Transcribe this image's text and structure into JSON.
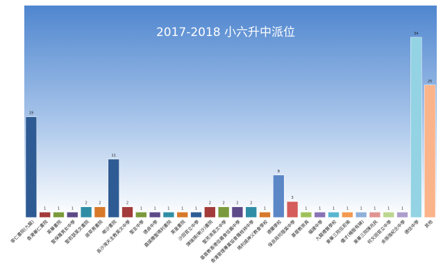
{
  "chart_data": {
    "type": "bar",
    "title": "2017-2018 小六升中派位",
    "categories": [
      "寧仁書院(九龍)",
      "香港華仁書院",
      "英華書院",
      "聖保羅男女中學",
      "聖若瑟英文書院",
      "拔萃男書院",
      "喇沙書院",
      "長沙灣天主教英文中學",
      "聖言中學",
      "德貞中學",
      "嘉諾撒聖瑪利書院",
      "英皇書院",
      "沙田官立中學",
      "陳瑞祺(喇沙)書院",
      "聖芳濟英文中學",
      "基督教香港信義會信義中學",
      "香港管理專業協會羅桂祥中學",
      "瑪利諾神父教會學校",
      "德蘭學校",
      "保良局何蔭棠中學",
      "基督教崇真",
      "福建中學",
      "九龍禮賢學校",
      "東華三院伍若瑜",
      "優才(楊殷有娣)",
      "東華三院陳兆民",
      "何文田官立中學",
      "余振強紀念中學",
      "德信中學",
      "其他"
    ],
    "values": [
      19,
      1,
      1,
      1,
      2,
      2,
      11,
      2,
      1,
      1,
      1,
      1,
      1,
      2,
      2,
      2,
      2,
      1,
      8,
      3,
      1,
      1,
      1,
      1,
      1,
      1,
      1,
      1,
      34,
      25
    ],
    "colors": [
      "#2e5b94",
      "#a33b3a",
      "#7a9a3b",
      "#5e4a87",
      "#2f8ea6",
      "#d7782a",
      "#2e5b94",
      "#a33b3a",
      "#7a9a3b",
      "#5e4a87",
      "#2f8ea6",
      "#d7782a",
      "#2e5b94",
      "#a33b3a",
      "#7a9a3b",
      "#5e4a87",
      "#2f8ea6",
      "#d7782a",
      "#5b87c7",
      "#d45c5a",
      "#9fc15a",
      "#8a73b5",
      "#59b6cf",
      "#f29a4f",
      "#8fb0da",
      "#e09492",
      "#bcd68f",
      "#ad9dcc",
      "#93d3e3",
      "#fbb38a"
    ],
    "ylim": [
      0,
      40
    ]
  }
}
